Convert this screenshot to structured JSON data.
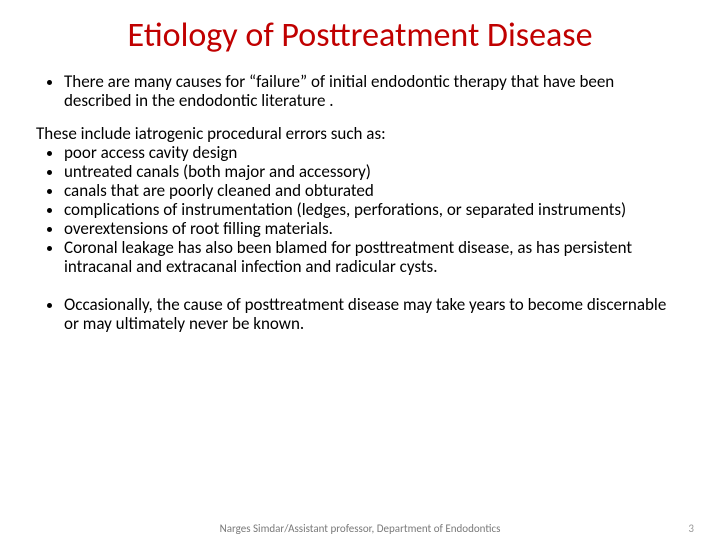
{
  "title": {
    "text": "Etiology of Posttreatment Disease",
    "color": "#c00000",
    "fontsize": 34
  },
  "intro_bullet": "There are many causes for “failure” of initial endodontic therapy that have been described in the endodontic literature .",
  "lead_text": "These include iatrogenic procedural errors such as:",
  "bullets": [
    " poor access cavity design",
    " untreated canals (both major and accessory)",
    "canals that are poorly cleaned and obturated",
    " complications of instrumentation (ledges, perforations, or separated instruments)",
    " overextensions of root filling materials.",
    "Coronal leakage has also been blamed for posttreatment disease, as has persistent intracanal and extracanal infection and radicular cysts."
  ],
  "final_bullet": "Occasionally, the cause of posttreatment disease may take years to become discernable or may ultimately never be known.",
  "footer": {
    "credit": "Narges Simdar/Assistant professor, Department of Endodontics",
    "page": "3",
    "credit_color": "#7a7a7a",
    "page_color": "#9a9a9a"
  },
  "body_fontsize": 17,
  "background_color": "#ffffff"
}
